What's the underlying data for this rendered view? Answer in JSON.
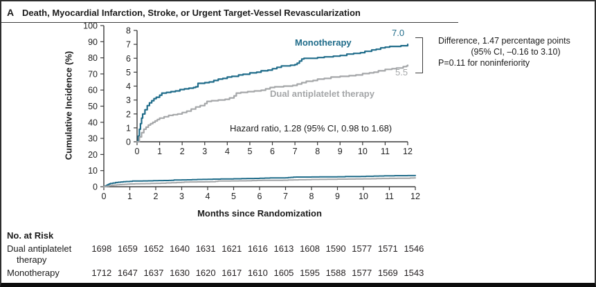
{
  "panel": {
    "letter": "A",
    "title": "Death, Myocardial Infarction, Stroke, or Urgent Target-Vessel Revascularization"
  },
  "colors": {
    "monotherapy_teal": "#1e6b89",
    "dual_gray": "#a4a6a8",
    "text_black": "#1a1a1a",
    "axis_gray": "#3a3a3a"
  },
  "chart_data": {
    "type": "line",
    "title": "Death, Myocardial Infarction, Stroke, or Urgent Target-Vessel Revascularization",
    "xlabel": "Months since Randomization",
    "ylabel": "Cumulative Incidence (%)",
    "legend_position": "inline-labels",
    "grid": false,
    "main_axis": {
      "xlim": [
        0,
        12
      ],
      "ylim": [
        0,
        100
      ],
      "xticks": [
        0,
        1,
        2,
        3,
        4,
        5,
        6,
        7,
        8,
        9,
        10,
        11,
        12
      ],
      "yticks": [
        0,
        10,
        20,
        30,
        40,
        50,
        60,
        70,
        80,
        90,
        100
      ],
      "line_width": 2
    },
    "inset_axis": {
      "xlim": [
        0,
        12
      ],
      "ylim": [
        0,
        8
      ],
      "xticks": [
        0,
        1,
        2,
        3,
        4,
        5,
        6,
        7,
        8,
        9,
        10,
        11,
        12
      ],
      "yticks": [
        0,
        1,
        2,
        3,
        4,
        5,
        6,
        7,
        8
      ],
      "line_width": 2.2
    },
    "series": [
      {
        "name": "Monotherapy",
        "color": "#1e6b89",
        "end_label": "7.0",
        "end_value_percent": 7.0,
        "points": [
          [
            0,
            0
          ],
          [
            0.05,
            0.4
          ],
          [
            0.1,
            0.9
          ],
          [
            0.15,
            1.3
          ],
          [
            0.2,
            1.7
          ],
          [
            0.25,
            2.0
          ],
          [
            0.35,
            2.3
          ],
          [
            0.45,
            2.6
          ],
          [
            0.55,
            2.8
          ],
          [
            0.65,
            2.95
          ],
          [
            0.75,
            3.1
          ],
          [
            0.85,
            3.2
          ],
          [
            1.0,
            3.35
          ],
          [
            1.1,
            3.5
          ],
          [
            1.3,
            3.55
          ],
          [
            1.5,
            3.6
          ],
          [
            1.7,
            3.65
          ],
          [
            1.9,
            3.75
          ],
          [
            2.1,
            3.8
          ],
          [
            2.3,
            3.85
          ],
          [
            2.5,
            3.9
          ],
          [
            2.6,
            3.95
          ],
          [
            2.7,
            4.2
          ],
          [
            3.0,
            4.25
          ],
          [
            3.2,
            4.3
          ],
          [
            3.4,
            4.4
          ],
          [
            3.6,
            4.5
          ],
          [
            3.8,
            4.55
          ],
          [
            4.0,
            4.65
          ],
          [
            4.2,
            4.7
          ],
          [
            4.5,
            4.8
          ],
          [
            4.7,
            4.85
          ],
          [
            5.0,
            4.95
          ],
          [
            5.3,
            5.0
          ],
          [
            5.5,
            5.1
          ],
          [
            5.8,
            5.15
          ],
          [
            6.0,
            5.25
          ],
          [
            6.2,
            5.35
          ],
          [
            6.4,
            5.45
          ],
          [
            6.8,
            5.5
          ],
          [
            7.0,
            5.55
          ],
          [
            7.1,
            5.65
          ],
          [
            7.2,
            5.8
          ],
          [
            7.3,
            5.95
          ],
          [
            7.4,
            6.0
          ],
          [
            8.0,
            6.05
          ],
          [
            8.3,
            6.1
          ],
          [
            8.7,
            6.15
          ],
          [
            9.0,
            6.2
          ],
          [
            9.3,
            6.3
          ],
          [
            9.6,
            6.35
          ],
          [
            9.9,
            6.4
          ],
          [
            10.1,
            6.5
          ],
          [
            10.4,
            6.6
          ],
          [
            10.6,
            6.65
          ],
          [
            10.8,
            6.75
          ],
          [
            11.0,
            6.8
          ],
          [
            11.2,
            6.85
          ],
          [
            11.7,
            6.9
          ],
          [
            12,
            7.0
          ]
        ]
      },
      {
        "name": "Dual antiplatelet therapy",
        "color": "#a4a6a8",
        "end_label": "5.5",
        "end_value_percent": 5.5,
        "points": [
          [
            0,
            0
          ],
          [
            0.1,
            0.35
          ],
          [
            0.2,
            0.65
          ],
          [
            0.3,
            0.9
          ],
          [
            0.4,
            1.05
          ],
          [
            0.5,
            1.2
          ],
          [
            0.6,
            1.3
          ],
          [
            0.7,
            1.4
          ],
          [
            0.8,
            1.5
          ],
          [
            0.9,
            1.6
          ],
          [
            1.0,
            1.7
          ],
          [
            1.2,
            1.8
          ],
          [
            1.4,
            1.9
          ],
          [
            1.6,
            1.95
          ],
          [
            1.8,
            2.0
          ],
          [
            2.0,
            2.1
          ],
          [
            2.2,
            2.2
          ],
          [
            2.4,
            2.35
          ],
          [
            2.6,
            2.5
          ],
          [
            2.8,
            2.6
          ],
          [
            3.0,
            2.75
          ],
          [
            3.1,
            2.9
          ],
          [
            3.3,
            2.95
          ],
          [
            3.6,
            3.0
          ],
          [
            3.9,
            3.05
          ],
          [
            4.1,
            3.15
          ],
          [
            4.3,
            3.3
          ],
          [
            4.4,
            3.5
          ],
          [
            4.6,
            3.55
          ],
          [
            4.9,
            3.6
          ],
          [
            5.2,
            3.65
          ],
          [
            5.5,
            3.7
          ],
          [
            5.7,
            3.8
          ],
          [
            5.9,
            3.9
          ],
          [
            6.1,
            3.95
          ],
          [
            6.5,
            4.0
          ],
          [
            6.9,
            4.05
          ],
          [
            7.1,
            4.15
          ],
          [
            7.3,
            4.25
          ],
          [
            7.5,
            4.35
          ],
          [
            7.8,
            4.4
          ],
          [
            8.0,
            4.5
          ],
          [
            8.3,
            4.55
          ],
          [
            8.6,
            4.65
          ],
          [
            9.0,
            4.7
          ],
          [
            9.4,
            4.75
          ],
          [
            9.7,
            4.8
          ],
          [
            10.0,
            4.9
          ],
          [
            10.3,
            4.95
          ],
          [
            10.5,
            5.0
          ],
          [
            10.7,
            5.1
          ],
          [
            11.0,
            5.2
          ],
          [
            11.3,
            5.25
          ],
          [
            11.5,
            5.3
          ],
          [
            11.8,
            5.4
          ],
          [
            11.95,
            5.45
          ],
          [
            12,
            5.5
          ]
        ]
      }
    ],
    "annotations": {
      "hazard_ratio": "Hazard ratio, 1.28 (95% CI, 0.98 to 1.68)",
      "difference_line1": "Difference, 1.47 percentage points",
      "difference_line2": "(95% CI, –0.16 to 3.10)",
      "difference_line3": "P=0.11 for noninferiority"
    }
  },
  "at_risk": {
    "header": "No. at Risk",
    "rows": [
      {
        "label_line1": "Dual antiplatelet",
        "label_line2": "therapy",
        "values": [
          1698,
          1659,
          1652,
          1640,
          1631,
          1621,
          1616,
          1613,
          1608,
          1590,
          1577,
          1571,
          1546
        ]
      },
      {
        "label_line1": "Monotherapy",
        "label_line2": "",
        "values": [
          1712,
          1647,
          1637,
          1630,
          1620,
          1617,
          1610,
          1605,
          1595,
          1588,
          1577,
          1569,
          1543
        ]
      }
    ]
  }
}
